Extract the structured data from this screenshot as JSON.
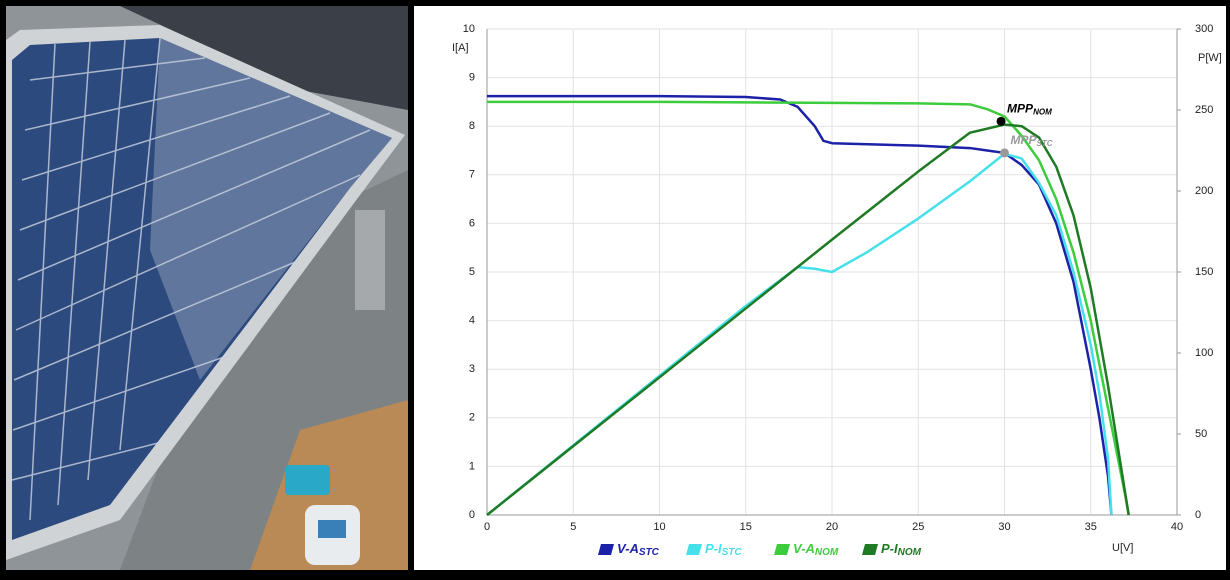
{
  "chart_data": {
    "type": "line",
    "y_label": "I[A]",
    "y2_label": "P[W]",
    "x_label": "U[V]",
    "xlim": [
      0,
      40
    ],
    "xticks": [
      0,
      5,
      10,
      15,
      20,
      25,
      30,
      35,
      40
    ],
    "ylim": [
      0,
      10
    ],
    "yticks": [
      0,
      1,
      2,
      3,
      4,
      5,
      6,
      7,
      8,
      9,
      10
    ],
    "y2lim": [
      0,
      300
    ],
    "y2ticks": [
      0,
      50,
      100,
      150,
      200,
      250,
      300
    ],
    "grid": true,
    "series": [
      {
        "name": "V-A",
        "subscript": "STC",
        "color": "#1c22a8",
        "x": [
          0,
          5,
          10,
          15,
          17,
          18,
          19,
          19.5,
          20,
          25,
          28,
          29,
          30,
          31,
          32,
          33,
          34,
          35,
          35.5,
          36,
          36.2
        ],
        "values": [
          8.62,
          8.62,
          8.62,
          8.6,
          8.55,
          8.4,
          8.0,
          7.7,
          7.65,
          7.6,
          7.55,
          7.5,
          7.45,
          7.2,
          6.8,
          6.0,
          4.8,
          3.0,
          2.0,
          0.8,
          0
        ]
      },
      {
        "name": "P-I",
        "subscript": "STC",
        "color": "#46e0ea",
        "axis": "y2",
        "x": [
          0,
          5,
          10,
          15,
          18,
          19,
          20,
          22,
          25,
          28,
          30,
          31,
          32,
          33,
          34,
          35,
          35.5,
          36,
          36.2
        ],
        "values": [
          0,
          43,
          86,
          129,
          153,
          152,
          150,
          162,
          183,
          206,
          223,
          220,
          205,
          185,
          150,
          105,
          75,
          35,
          0
        ]
      },
      {
        "name": "V-A",
        "subscript": "NOM",
        "color": "#3ccc3c",
        "x": [
          0,
          5,
          10,
          15,
          20,
          25,
          28,
          29,
          30,
          31,
          32,
          33,
          34,
          35,
          36,
          36.5,
          37,
          37.2
        ],
        "values": [
          8.5,
          8.5,
          8.5,
          8.49,
          8.48,
          8.47,
          8.45,
          8.35,
          8.2,
          7.8,
          7.3,
          6.5,
          5.4,
          4.0,
          2.2,
          1.3,
          0.4,
          0
        ]
      },
      {
        "name": "P-I",
        "subscript": "NOM",
        "color": "#1f7a24",
        "axis": "y2",
        "x": [
          0,
          5,
          10,
          15,
          20,
          25,
          28,
          30,
          31,
          32,
          33,
          34,
          35,
          36,
          36.6,
          37.2
        ],
        "values": [
          0,
          42.5,
          85,
          127.5,
          170,
          212,
          236,
          241,
          240,
          233,
          215,
          185,
          140,
          80,
          40,
          0
        ]
      }
    ],
    "annotations": [
      {
        "text": "MPP",
        "subscript": "NOM",
        "x": 29.8,
        "y": 8.1,
        "color": "#000000"
      },
      {
        "text": "MPP",
        "subscript": "STC",
        "x": 30,
        "y": 7.45,
        "color": "#999999"
      }
    ]
  }
}
